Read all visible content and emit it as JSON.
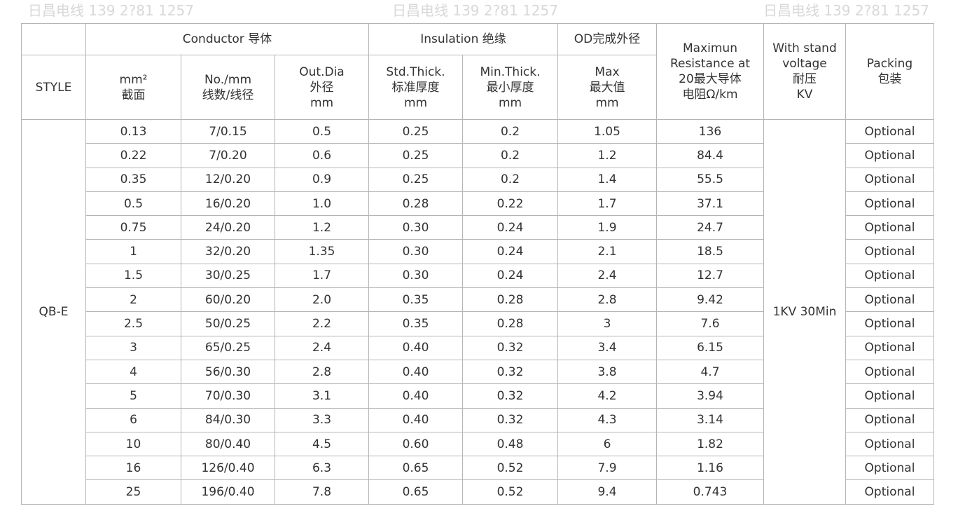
{
  "header": {
    "style": "STYLE",
    "conductor": "Conductor 导体",
    "insulation": "Insulation 绝缘",
    "od": "OD完成外径",
    "resistance": [
      "Maximun",
      "Resistance at",
      "20最大导体",
      "电阻Ω/km"
    ],
    "voltage": [
      "With stand",
      "voltage",
      "耐压",
      "KV"
    ],
    "packing": [
      "Packing",
      "包装"
    ],
    "mm2": [
      "mm²",
      "截面"
    ],
    "no_mm": [
      "No./mm",
      "线数/线径"
    ],
    "out_dia": [
      "Out.Dia",
      "外径",
      "mm"
    ],
    "std_thick": [
      "Std.Thick.",
      "标准厚度",
      "mm"
    ],
    "min_thick": [
      "Min.Thick.",
      "最小厚度",
      "mm"
    ],
    "max": [
      "Max",
      "最大值",
      "mm"
    ]
  },
  "style_value": "QB-E",
  "voltage_value": "1KV 30Min",
  "rows": [
    [
      "0.13",
      "7/0.15",
      "0.5",
      "0.25",
      "0.2",
      "1.05",
      "136",
      "Optional"
    ],
    [
      "0.22",
      "7/0.20",
      "0.6",
      "0.25",
      "0.2",
      "1.2",
      "84.4",
      "Optional"
    ],
    [
      "0.35",
      "12/0.20",
      "0.9",
      "0.25",
      "0.2",
      "1.4",
      "55.5",
      "Optional"
    ],
    [
      "0.5",
      "16/0.20",
      "1.0",
      "0.28",
      "0.22",
      "1.7",
      "37.1",
      "Optional"
    ],
    [
      "0.75",
      "24/0.20",
      "1.2",
      "0.30",
      "0.24",
      "1.9",
      "24.7",
      "Optional"
    ],
    [
      "1",
      "32/0.20",
      "1.35",
      "0.30",
      "0.24",
      "2.1",
      "18.5",
      "Optional"
    ],
    [
      "1.5",
      "30/0.25",
      "1.7",
      "0.30",
      "0.24",
      "2.4",
      "12.7",
      "Optional"
    ],
    [
      "2",
      "60/0.20",
      "2.0",
      "0.35",
      "0.28",
      "2.8",
      "9.42",
      "Optional"
    ],
    [
      "2.5",
      "50/0.25",
      "2.2",
      "0.35",
      "0.28",
      "3",
      "7.6",
      "Optional"
    ],
    [
      "3",
      "65/0.25",
      "2.4",
      "0.40",
      "0.32",
      "3.4",
      "6.15",
      "Optional"
    ],
    [
      "4",
      "56/0.30",
      "2.8",
      "0.40",
      "0.32",
      "3.8",
      "4.7",
      "Optional"
    ],
    [
      "5",
      "70/0.30",
      "3.1",
      "0.40",
      "0.32",
      "4.2",
      "3.94",
      "Optional"
    ],
    [
      "6",
      "84/0.30",
      "3.3",
      "0.40",
      "0.32",
      "4.3",
      "3.14",
      "Optional"
    ],
    [
      "10",
      "80/0.40",
      "4.5",
      "0.60",
      "0.48",
      "6",
      "1.82",
      "Optional"
    ],
    [
      "16",
      "126/0.40",
      "6.3",
      "0.65",
      "0.52",
      "7.9",
      "1.16",
      "Optional"
    ],
    [
      "25",
      "196/0.40",
      "7.8",
      "0.65",
      "0.52",
      "9.4",
      "0.743",
      "Optional"
    ]
  ],
  "watermark": "日昌电线 139 2?81 1257"
}
